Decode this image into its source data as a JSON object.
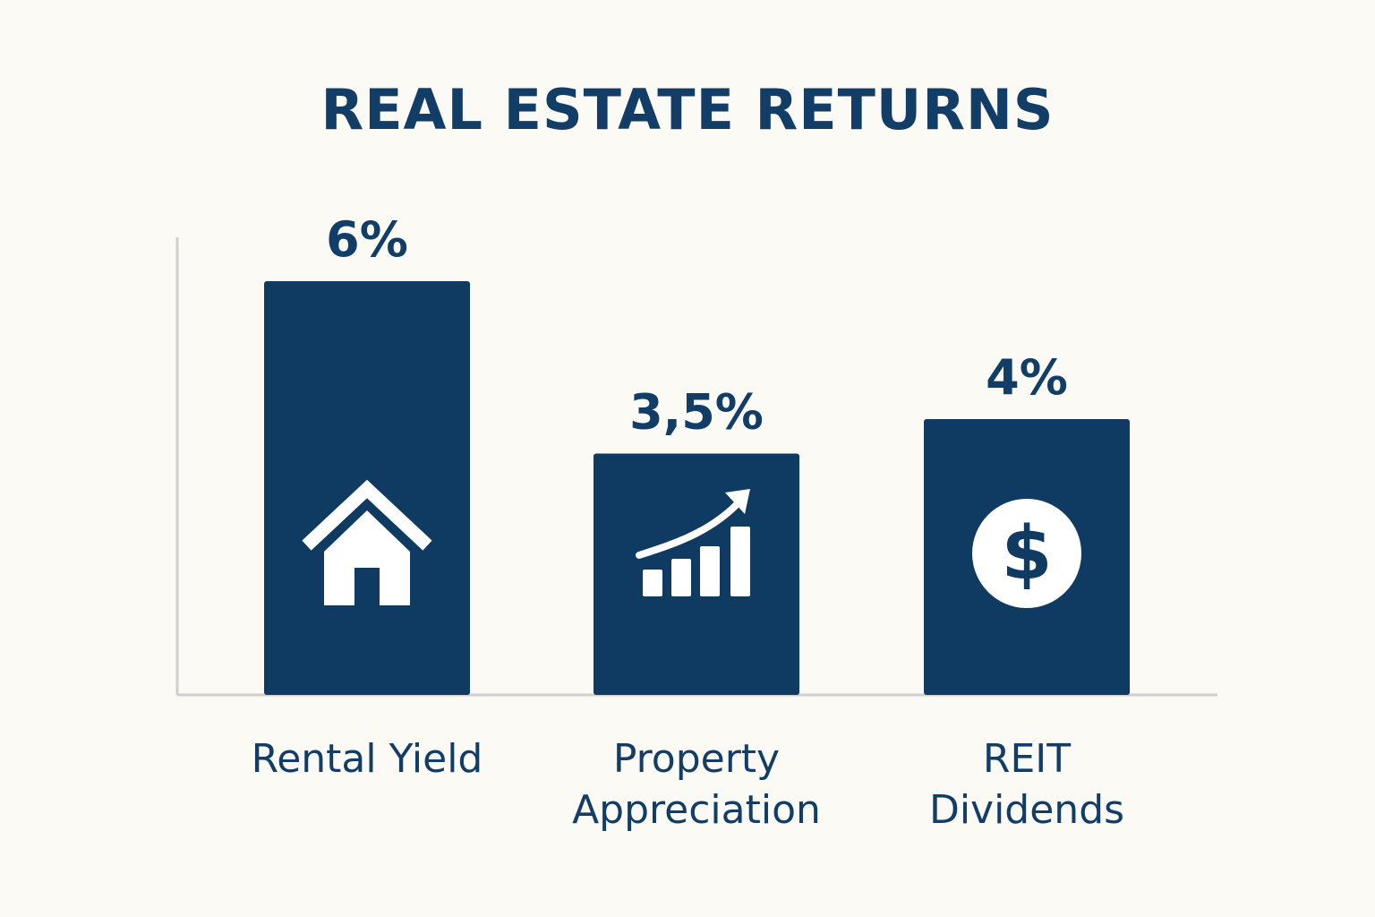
{
  "colors": {
    "background": "#fbfaf5",
    "bar": "#0f3b63",
    "text": "#123d66",
    "icon": "#ffffff",
    "axis": "#cfcfcf"
  },
  "chart_data": {
    "type": "bar",
    "title": "REAL ESTATE RETURNS",
    "categories": [
      "Rental Yield",
      "Property Appreciation",
      "REIT Dividends"
    ],
    "category_lines": [
      [
        "Rental Yield"
      ],
      [
        "Property",
        "Appreciation"
      ],
      [
        "REIT",
        "Dividends"
      ]
    ],
    "values": [
      6,
      3.5,
      4
    ],
    "value_labels": [
      "6%",
      "3,5%",
      "4%"
    ],
    "icons": [
      "house-icon",
      "growth-chart-icon",
      "dollar-coin-icon"
    ],
    "ylim": [
      0,
      7
    ],
    "grid": false,
    "legend": "none",
    "note": ""
  }
}
